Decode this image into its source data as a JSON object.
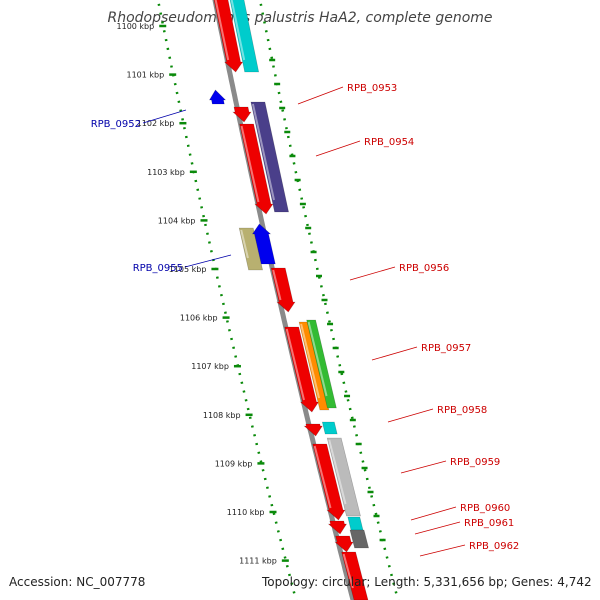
{
  "title": "Rhodopseudomonas palustris HaA2, complete genome",
  "footer": {
    "accession": "Accession: NC_007778",
    "topology": "Topology: circular; Length: 5,331,656 bp; Genes: 4,742"
  },
  "ticks": [
    {
      "label": "1100 kbp"
    },
    {
      "label": "1101 kbp"
    },
    {
      "label": "1102 kbp"
    },
    {
      "label": "1103 kbp"
    },
    {
      "label": "1104 kbp"
    },
    {
      "label": "1105 kbp"
    },
    {
      "label": "1106 kbp"
    },
    {
      "label": "1107 kbp"
    },
    {
      "label": "1108 kbp"
    },
    {
      "label": "1109 kbp"
    },
    {
      "label": "1110 kbp"
    },
    {
      "label": "1111 kbp"
    }
  ],
  "gene_labels": {
    "reverse": [
      "RPB_0952",
      "RPB_0955"
    ],
    "forward": [
      "RPB_0953",
      "RPB_0954",
      "RPB_0956",
      "RPB_0957",
      "RPB_0958",
      "RPB_0959",
      "RPB_0960",
      "RPB_0961",
      "RPB_0962"
    ]
  },
  "colors": {
    "backbone": "#8a8a8a",
    "tick_dots": "#0a8a0a",
    "forward_label": "#cc0000",
    "reverse_label": "#0000aa",
    "gene_red": "#ee0000",
    "gene_cyan": "#00cccc",
    "gene_purple": "#4a3f8a",
    "gene_blue": "#0000ee",
    "gene_khaki": "#b8b070",
    "gene_orange": "#ff8c00",
    "gene_green": "#33bb33",
    "gene_grey": "#bbbbbb",
    "gene_darkgrey": "#666666"
  }
}
